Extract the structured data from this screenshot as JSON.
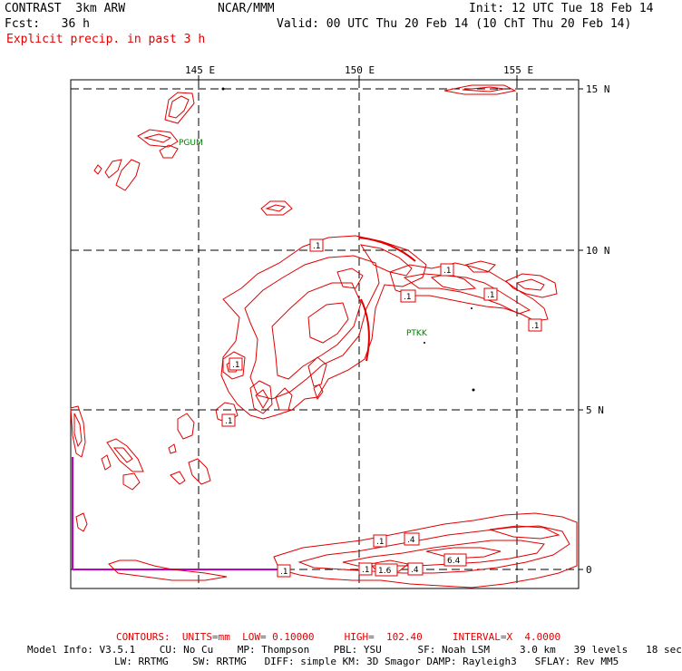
{
  "header": {
    "model": "CONTRAST  3km ARW",
    "center": "NCAR/MMM",
    "init": "Init: 12 UTC Tue 18 Feb 14",
    "fcst": "Fcst:   36 h",
    "valid": "Valid: 00 UTC Thu 20 Feb 14 (10 ChT Thu 20 Feb 14)",
    "field": "Explicit precip. in past 3 h"
  },
  "map": {
    "lon_labels": [
      "145 E",
      "150 E",
      "155 E"
    ],
    "lat_labels": [
      "15 N",
      "10 N",
      "5 N",
      "0"
    ],
    "stations": [
      "PGUM",
      "PTKK"
    ],
    "contour_labels": [
      ".1",
      ".1",
      ".1",
      ".1",
      ".1",
      ".1",
      ".1",
      ".1",
      ".1",
      ".4",
      "6.4",
      "1.6",
      ".4",
      ".1"
    ],
    "colors": {
      "contour": "#e00000",
      "grid": "#000000",
      "station": "#007a00",
      "boundary": "#c000c0"
    }
  },
  "footer": {
    "contours_line": "CONTOURS:  UNITS=mm  LOW= 0.10000     HIGH=  102.40     INTERVAL=X  4.0000",
    "model_info_1": "Model Info: V3.5.1    CU: No Cu    MP: Thompson    PBL: YSU      SF: Noah LSM     3.0 km   39 levels   18 sec",
    "model_info_2": "LW: RRTMG    SW: RRTMG   DIFF: simple KM: 3D Smagor DAMP: Rayleigh3   SFLAY: Rev MM5"
  }
}
